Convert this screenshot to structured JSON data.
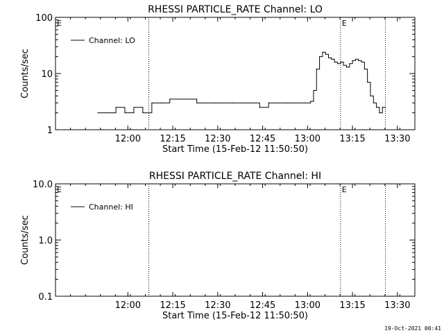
{
  "footer_timestamp": "19-Oct-2021 00:41",
  "chart_data": [
    {
      "type": "line",
      "title": "RHESSI PARTICLE_RATE Channel: LO",
      "xlabel": "Start Time (15-Feb-12 11:50:50)",
      "ylabel": "Counts/sec",
      "yscale": "log",
      "ylim": [
        1,
        100
      ],
      "xlim_minutes": [
        -15,
        105
      ],
      "x_tick_labels": [
        "12:00",
        "12:15",
        "12:30",
        "12:45",
        "13:00",
        "13:15",
        "13:30"
      ],
      "y_tick_labels": [
        "1",
        "10",
        "100"
      ],
      "legend": {
        "label": "Channel: LO",
        "placement": "top-left"
      },
      "annotation": "E",
      "event_lines_label": [
        "12:07",
        "13:11",
        "13:26"
      ],
      "series": [
        {
          "name": "Channel: LO",
          "time_label": [
            "11:50",
            "11:53",
            "11:56",
            "11:59",
            "12:02",
            "12:05",
            "12:08",
            "12:11",
            "12:14",
            "12:17",
            "12:20",
            "12:23",
            "12:26",
            "12:29",
            "12:32",
            "12:35",
            "12:38",
            "12:41",
            "12:44",
            "12:47",
            "12:50",
            "12:53",
            "12:56",
            "12:59",
            "13:01",
            "13:02",
            "13:03",
            "13:04",
            "13:05",
            "13:06",
            "13:07",
            "13:08",
            "13:09",
            "13:10",
            "13:11",
            "13:12",
            "13:13",
            "13:14",
            "13:15",
            "13:16",
            "13:17",
            "13:18",
            "13:19",
            "13:20",
            "13:21",
            "13:22",
            "13:23",
            "13:24",
            "13:25",
            "13:26"
          ],
          "values": [
            2,
            2,
            2.5,
            2,
            2.5,
            2,
            3,
            3,
            3.5,
            3.5,
            3.5,
            3,
            3,
            3,
            3,
            3,
            3,
            3,
            2.5,
            3,
            3,
            3,
            3,
            3,
            3.2,
            5,
            12,
            20,
            24,
            22,
            19,
            18,
            16,
            15,
            16,
            14,
            13,
            15,
            17,
            18,
            17,
            16,
            12,
            7,
            4,
            3,
            2.5,
            2,
            2.5,
            2.5
          ]
        }
      ]
    },
    {
      "type": "line",
      "title": "RHESSI PARTICLE_RATE Channel: HI",
      "xlabel": "Start Time (15-Feb-12 11:50:50)",
      "ylabel": "Counts/sec",
      "yscale": "log",
      "ylim": [
        0.1,
        10
      ],
      "xlim_minutes": [
        -15,
        105
      ],
      "x_tick_labels": [
        "12:00",
        "12:15",
        "12:30",
        "12:45",
        "13:00",
        "13:15",
        "13:30"
      ],
      "y_tick_labels": [
        "0.1",
        "1.0",
        "10.0"
      ],
      "legend": {
        "label": "Channel: HI",
        "placement": "top-left"
      },
      "annotation": "E",
      "event_lines_label": [
        "12:07",
        "13:11",
        "13:26"
      ],
      "series": [
        {
          "name": "Channel: HI",
          "values": []
        }
      ]
    }
  ]
}
